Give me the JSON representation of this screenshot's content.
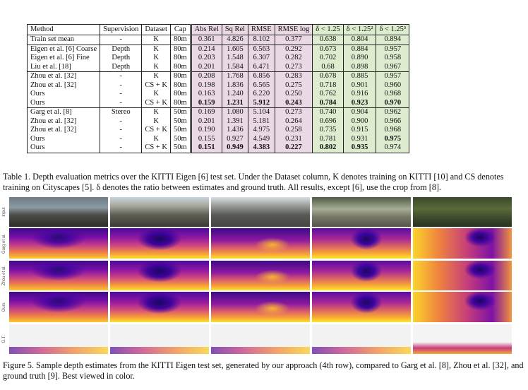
{
  "table": {
    "headers": [
      "Method",
      "Supervision",
      "Dataset",
      "Cap",
      "Abs Rel",
      "Sq Rel",
      "RMSE",
      "RMSE log",
      "δ < 1.25",
      "δ < 1.25²",
      "δ < 1.25³"
    ],
    "rows": [
      {
        "method": "Train set mean",
        "sup": "-",
        "ds": "K",
        "cap": "80m",
        "v": [
          "0.361",
          "4.826",
          "8.102",
          "0.377",
          "0.638",
          "0.804",
          "0.894"
        ]
      },
      {
        "method": "Eigen et al. [6] Coarse",
        "sup": "Depth",
        "ds": "K",
        "cap": "80m",
        "v": [
          "0.214",
          "1.605",
          "6.563",
          "0.292",
          "0.673",
          "0.884",
          "0.957"
        ]
      },
      {
        "method": "Eigen et al. [6] Fine",
        "sup": "Depth",
        "ds": "K",
        "cap": "80m",
        "v": [
          "0.203",
          "1.548",
          "6.307",
          "0.282",
          "0.702",
          "0.890",
          "0.958"
        ]
      },
      {
        "method": "Liu et al. [18]",
        "sup": "Depth",
        "ds": "K",
        "cap": "80m",
        "v": [
          "0.201",
          "1.584",
          "6.471",
          "0.273",
          "0.68",
          "0.898",
          "0.967"
        ]
      },
      {
        "method": "Zhou et al. [32]",
        "sup": "-",
        "ds": "K",
        "cap": "80m",
        "v": [
          "0.208",
          "1.768",
          "6.856",
          "0.283",
          "0.678",
          "0.885",
          "0.957"
        ]
      },
      {
        "method": "Zhou et al. [32]",
        "sup": "-",
        "ds": "CS + K",
        "cap": "80m",
        "v": [
          "0.198",
          "1.836",
          "6.565",
          "0.275",
          "0.718",
          "0.901",
          "0.960"
        ]
      },
      {
        "method": "Ours",
        "sup": "-",
        "ds": "K",
        "cap": "80m",
        "v": [
          "0.163",
          "1.240",
          "6.220",
          "0.250",
          "0.762",
          "0.916",
          "0.968"
        ]
      },
      {
        "method": "Ours",
        "sup": "-",
        "ds": "CS + K",
        "cap": "80m",
        "v": [
          "0.159",
          "1.231",
          "5.912",
          "0.243",
          "0.784",
          "0.923",
          "0.970"
        ]
      },
      {
        "method": "Garg et al. [8]",
        "sup": "Stereo",
        "ds": "K",
        "cap": "50m",
        "v": [
          "0.169",
          "1.080",
          "5.104",
          "0.273",
          "0.740",
          "0.904",
          "0.962"
        ]
      },
      {
        "method": "Zhou et al. [32]",
        "sup": "-",
        "ds": "K",
        "cap": "50m",
        "v": [
          "0.201",
          "1.391",
          "5.181",
          "0.264",
          "0.696",
          "0.900",
          "0.966"
        ]
      },
      {
        "method": "Zhou et al. [32]",
        "sup": "-",
        "ds": "CS + K",
        "cap": "50m",
        "v": [
          "0.190",
          "1.436",
          "4.975",
          "0.258",
          "0.735",
          "0.915",
          "0.968"
        ]
      },
      {
        "method": "Ours",
        "sup": "-",
        "ds": "K",
        "cap": "50m",
        "v": [
          "0.155",
          "0.927",
          "4.549",
          "0.231",
          "0.781",
          "0.931",
          "0.975"
        ]
      },
      {
        "method": "Ours",
        "sup": "-",
        "ds": "CS + K",
        "cap": "50m",
        "v": [
          "0.151",
          "0.949",
          "4.383",
          "0.227",
          "0.802",
          "0.935",
          "0.974"
        ]
      }
    ]
  },
  "caption1": "Table 1. Depth evaluation metrics over the KITTI Eigen [6] test set. Under the Dataset column, K denotes training on KITTI [10] and CS denotes training on Cityscapes [5]. δ denotes the ratio between estimates and ground truth. All results, except [6], use the crop from [8].",
  "figure": {
    "row_labels": [
      "Input",
      "Garg et al.",
      "Zhou et al.",
      "Ours",
      "G.T."
    ]
  },
  "caption2": "Figure 5. Sample depth estimates from the KITTI Eigen test set, generated by our approach (4th row), compared to Garg et al. [8], Zhou et al. [32], and ground truth [9]. Best viewed in color."
}
